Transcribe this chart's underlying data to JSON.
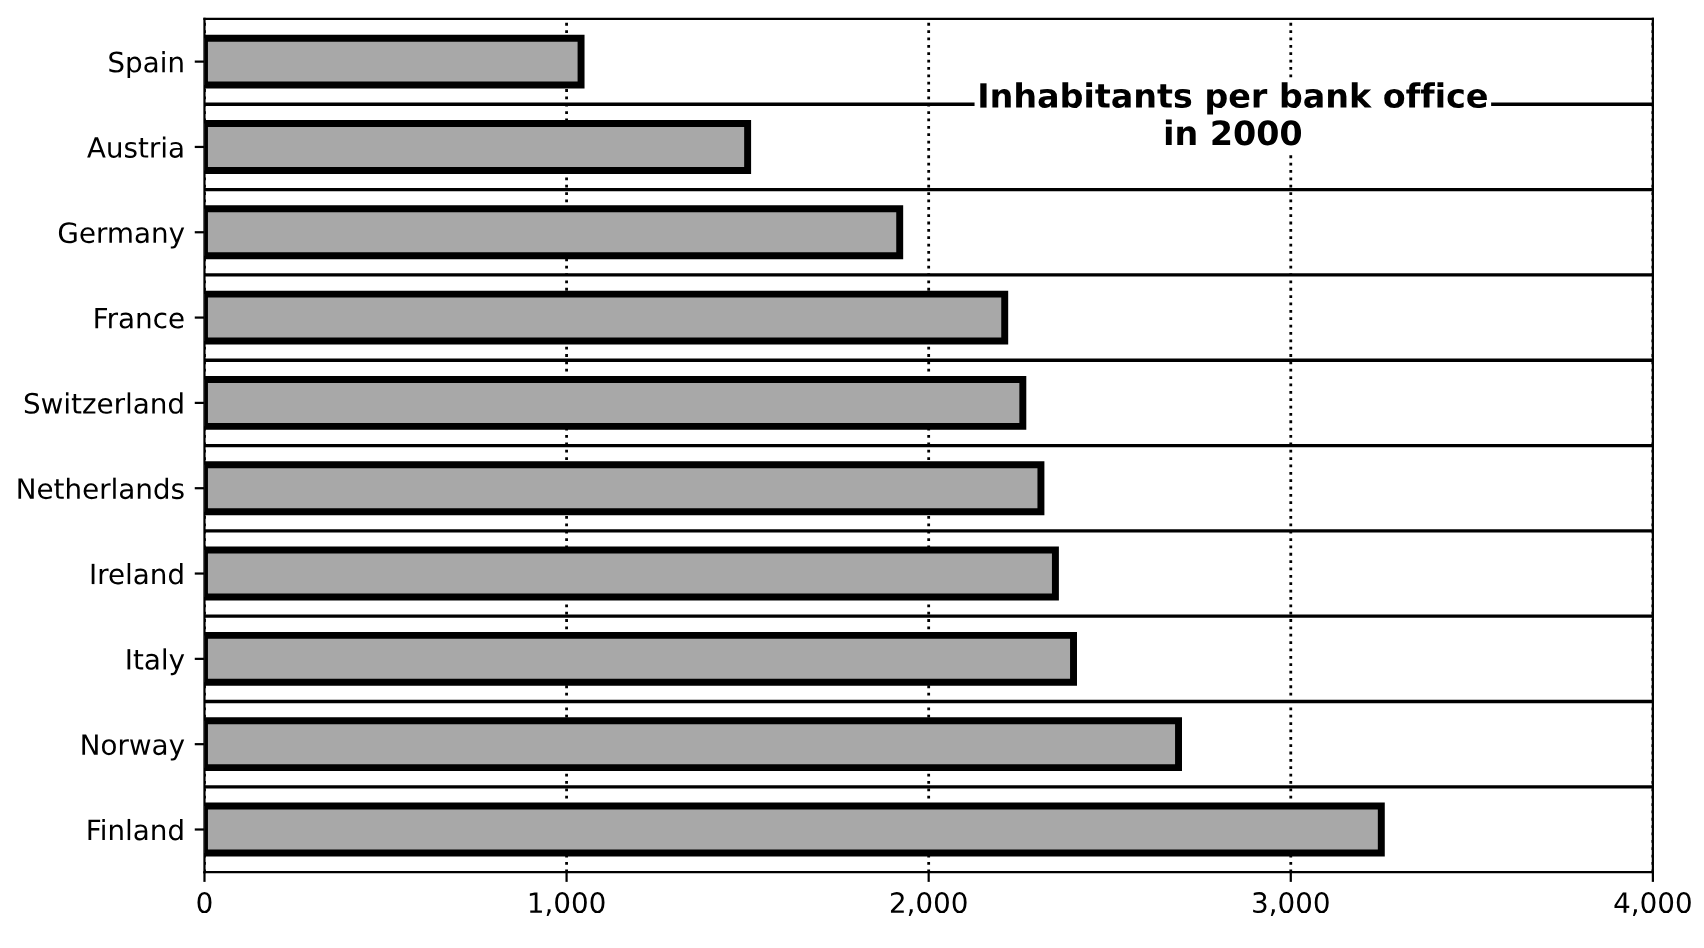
{
  "chart_data": {
    "type": "bar",
    "orientation": "horizontal",
    "title": "Inhabitants per bank office\nin 2000",
    "categories": [
      "Spain",
      "Austria",
      "Germany",
      "France",
      "Switzerland",
      "Netherlands",
      "Ireland",
      "Italy",
      "Norway",
      "Finland"
    ],
    "values": [
      1040,
      1500,
      1920,
      2210,
      2260,
      2310,
      2350,
      2400,
      2690,
      3250
    ],
    "color": "#a8a8a8",
    "xlim": [
      0,
      4000
    ],
    "xticks": [
      {
        "value": 0,
        "label": "0"
      },
      {
        "value": 1000,
        "label": "1,000"
      },
      {
        "value": 2000,
        "label": "2,000"
      },
      {
        "value": 3000,
        "label": "3,000"
      },
      {
        "value": 4000,
        "label": "4,000"
      }
    ],
    "grid": "x"
  }
}
